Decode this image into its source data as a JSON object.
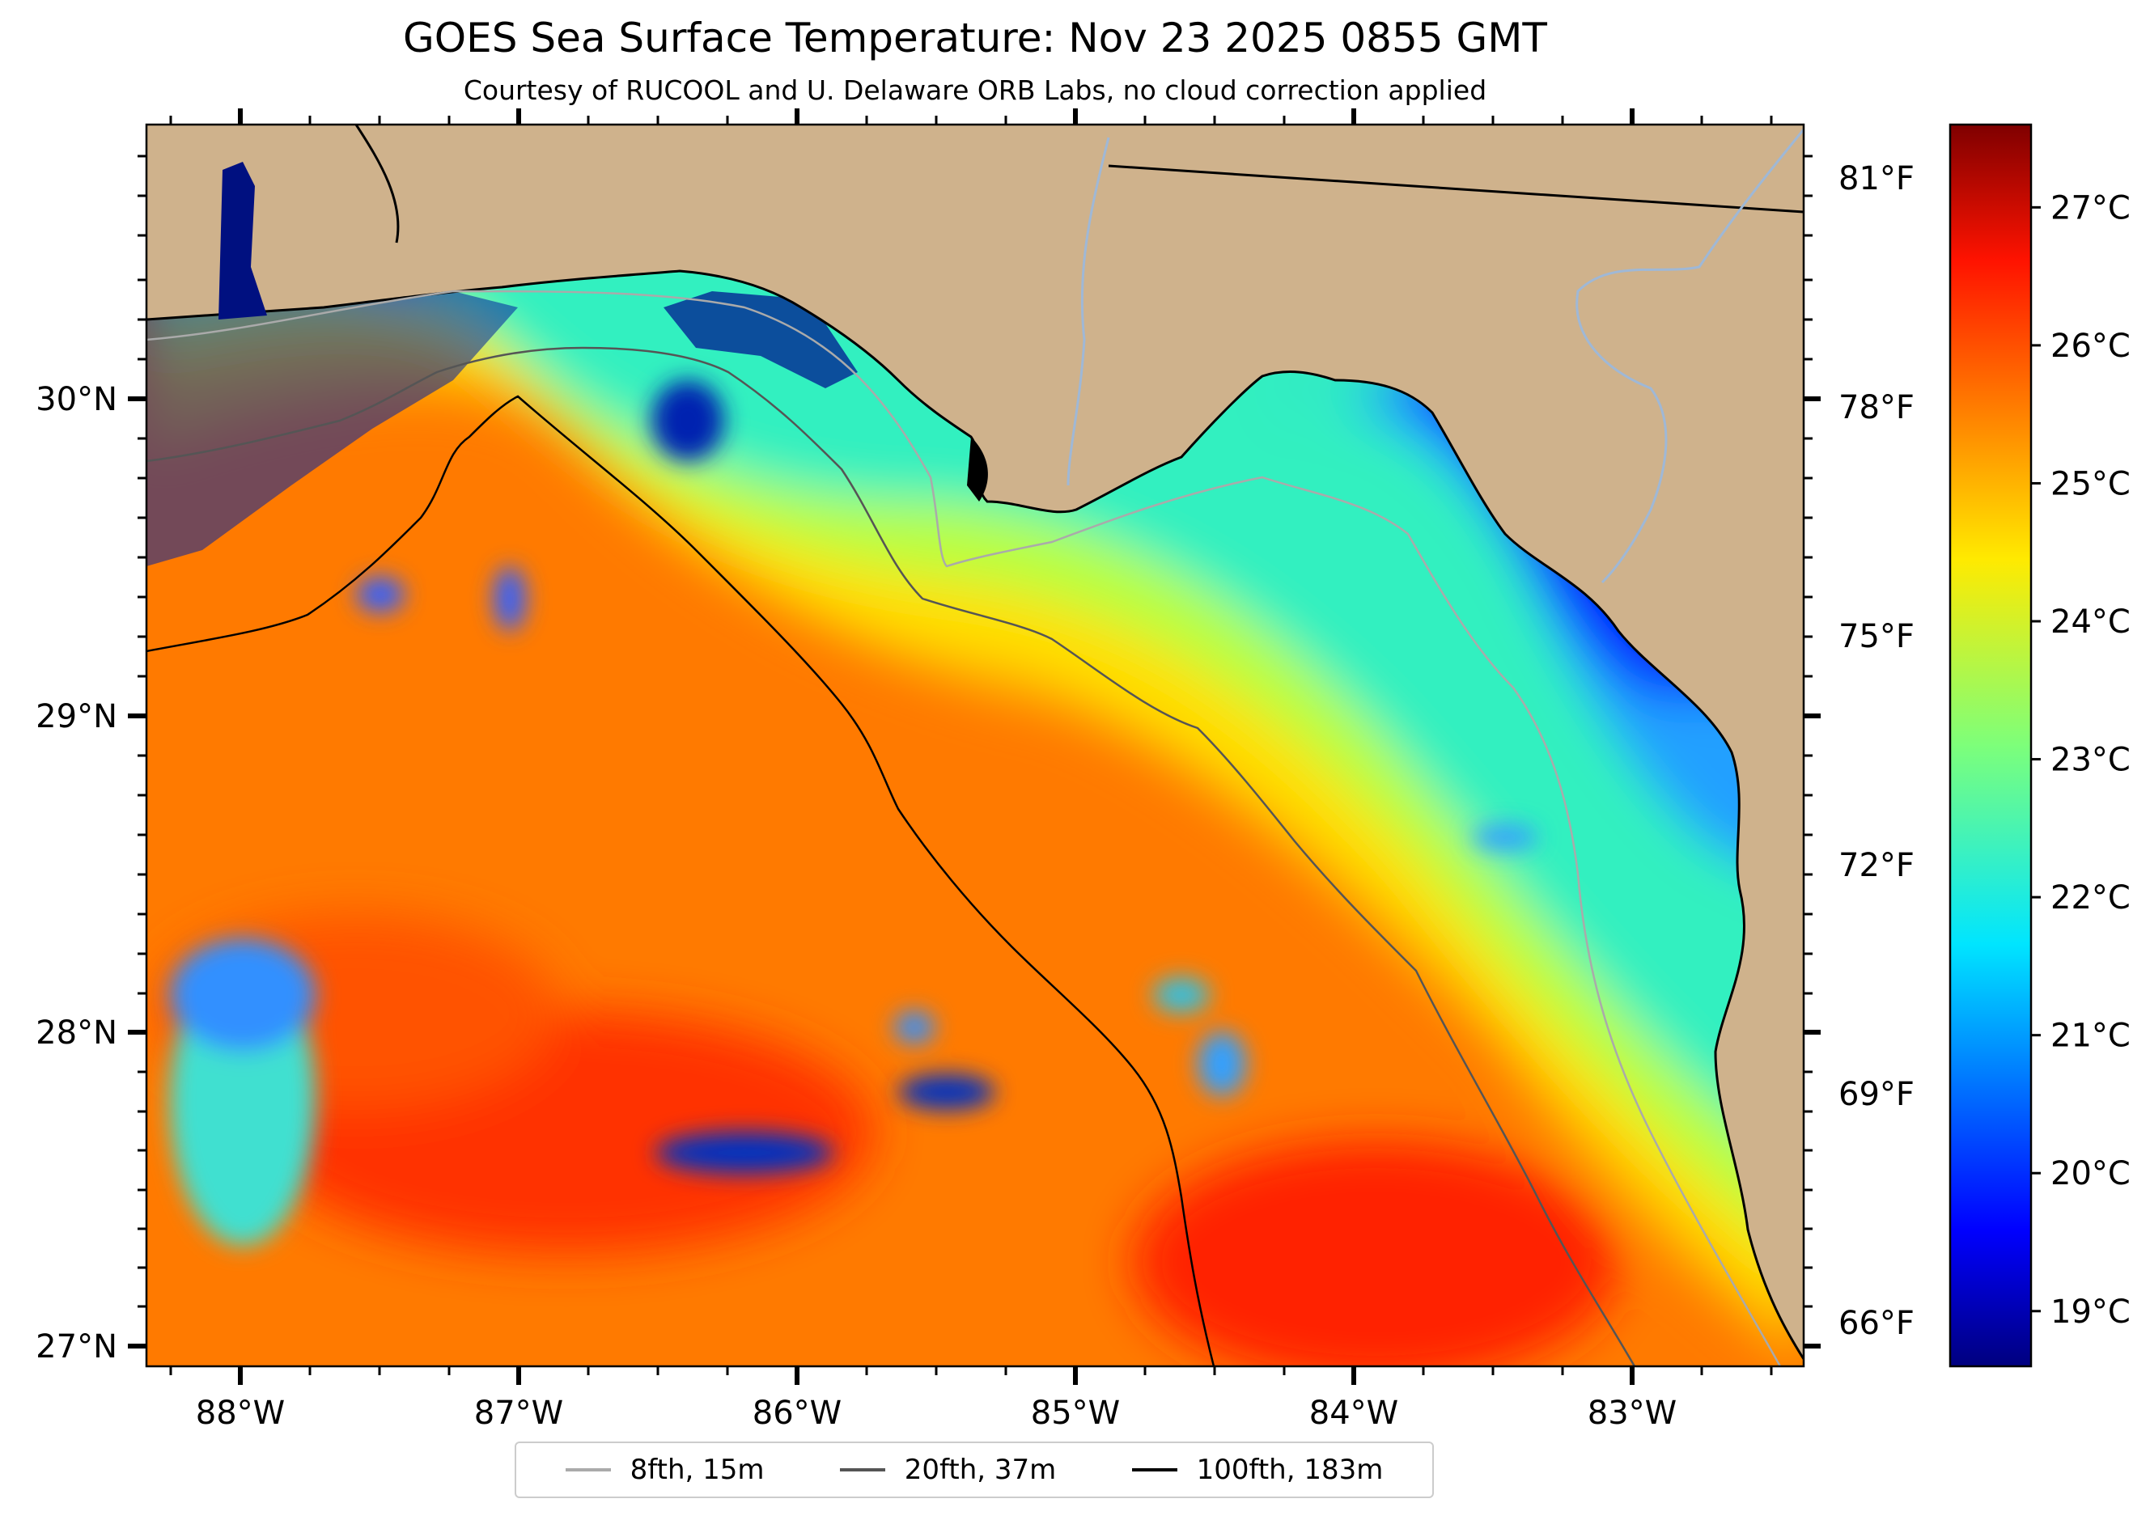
{
  "title": "GOES Sea Surface Temperature: Nov 23 2025 0855 GMT",
  "subtitle": "Courtesy of RUCOOL and U. Delaware ORB Labs, no cloud correction applied",
  "map": {
    "lon_ticks": [
      "88°W",
      "87°W",
      "86°W",
      "85°W",
      "84°W",
      "83°W"
    ],
    "lat_ticks": [
      "30°N",
      "29°N",
      "28°N",
      "27°N"
    ],
    "fahrenheit_ticks": [
      "81°F",
      "78°F",
      "75°F",
      "72°F",
      "69°F",
      "66°F"
    ],
    "colors": {
      "land": "#cfb28c",
      "coastline": "#000000",
      "rivers": "#9fb8d6"
    }
  },
  "colorbar": {
    "labels": [
      "27°C",
      "26°C",
      "25°C",
      "24°C",
      "23°C",
      "22°C",
      "21°C",
      "20°C",
      "19°C"
    ],
    "min": 18.6,
    "max": 27.6,
    "colormap": "jet"
  },
  "legend": {
    "items": [
      {
        "label": "8fth, 15m",
        "color": "#aaaaaa"
      },
      {
        "label": "20fth, 37m",
        "color": "#555555"
      },
      {
        "label": "100fth, 183m",
        "color": "#000000"
      }
    ]
  }
}
